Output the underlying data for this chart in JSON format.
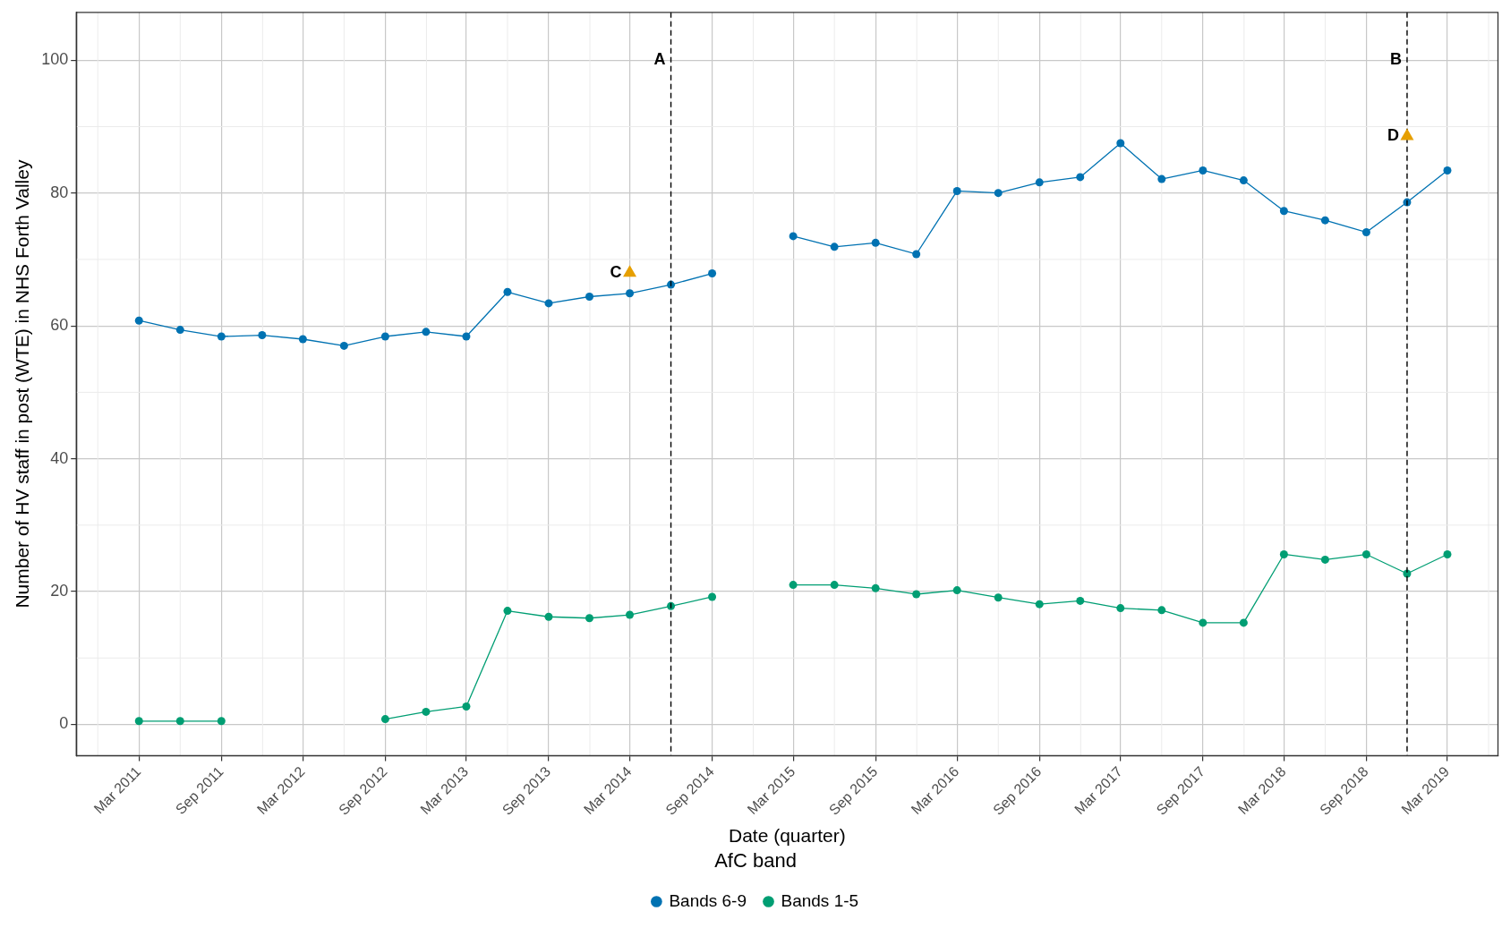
{
  "chart_data": {
    "type": "line",
    "xlabel": "Date (quarter)",
    "ylabel": "Number of HV staff in post (WTE) in NHS Forth Valley",
    "legend_title": "AfC band",
    "x": [
      "2011-03",
      "2011-06",
      "2011-09",
      "2011-12",
      "2012-03",
      "2012-06",
      "2012-09",
      "2012-12",
      "2013-03",
      "2013-06",
      "2013-09",
      "2013-12",
      "2014-03",
      "2014-06",
      "2014-09",
      "2014-12",
      "2015-03",
      "2015-06",
      "2015-09",
      "2015-12",
      "2016-03",
      "2016-06",
      "2016-09",
      "2016-12",
      "2017-03",
      "2017-06",
      "2017-09",
      "2017-12",
      "2018-03",
      "2018-06",
      "2018-09",
      "2018-12",
      "2019-03"
    ],
    "series": [
      {
        "name": "Bands 6-9",
        "color": "#0072b2",
        "values": [
          60.8,
          59.4,
          58.4,
          58.6,
          58.0,
          57.0,
          58.4,
          59.1,
          58.4,
          65.1,
          63.4,
          64.4,
          64.9,
          66.2,
          67.9,
          null,
          73.5,
          71.9,
          72.5,
          70.8,
          80.3,
          80.0,
          81.6,
          82.4,
          87.5,
          82.1,
          83.4,
          81.9,
          77.3,
          75.9,
          74.1,
          78.6,
          83.4
        ]
      },
      {
        "name": "Bands 1-5",
        "color": "#009e73",
        "values": [
          0.5,
          0.5,
          0.5,
          null,
          null,
          null,
          0.8,
          1.9,
          2.7,
          17.1,
          16.2,
          16.0,
          16.5,
          17.8,
          19.2,
          null,
          21.0,
          21.0,
          20.5,
          19.6,
          20.2,
          19.1,
          18.1,
          18.6,
          17.5,
          17.2,
          15.3,
          15.3,
          25.6,
          24.8,
          25.6,
          22.7,
          25.6
        ]
      }
    ],
    "annotations": [
      {
        "text": "C",
        "x": "2014-03",
        "y": 68.2
      },
      {
        "text": "D",
        "x": "2018-12",
        "y": 88.8
      }
    ],
    "ref_lines": [
      {
        "axis": "x",
        "value": "2014-06",
        "label": "A",
        "color": "#000000",
        "line_style": "dashed"
      },
      {
        "axis": "x",
        "value": "2018-12",
        "label": "B",
        "color": "#000000",
        "line_style": "dashed"
      }
    ],
    "xlim": [
      "2010-10-12",
      "2019-06-22"
    ],
    "xticks": [
      {
        "value": "2011-03",
        "label": "Mar 2011"
      },
      {
        "value": "2011-09",
        "label": "Sep 2011"
      },
      {
        "value": "2012-03",
        "label": "Mar 2012"
      },
      {
        "value": "2012-09",
        "label": "Sep 2012"
      },
      {
        "value": "2013-03",
        "label": "Mar 2013"
      },
      {
        "value": "2013-09",
        "label": "Sep 2013"
      },
      {
        "value": "2014-03",
        "label": "Mar 2014"
      },
      {
        "value": "2014-09",
        "label": "Sep 2014"
      },
      {
        "value": "2015-03",
        "label": "Mar 2015"
      },
      {
        "value": "2015-09",
        "label": "Sep 2015"
      },
      {
        "value": "2016-03",
        "label": "Mar 2016"
      },
      {
        "value": "2016-09",
        "label": "Sep 2016"
      },
      {
        "value": "2017-03",
        "label": "Mar 2017"
      },
      {
        "value": "2017-09",
        "label": "Sep 2017"
      },
      {
        "value": "2018-03",
        "label": "Mar 2018"
      },
      {
        "value": "2018-09",
        "label": "Sep 2018"
      },
      {
        "value": "2019-03",
        "label": "Mar 2019"
      }
    ],
    "ylim": [
      -4.7,
      107.2
    ],
    "yticks": [
      0,
      20,
      40,
      60,
      80,
      100
    ],
    "grid": true,
    "legend": "bottom",
    "marker": "circle",
    "line_style": "solid"
  }
}
